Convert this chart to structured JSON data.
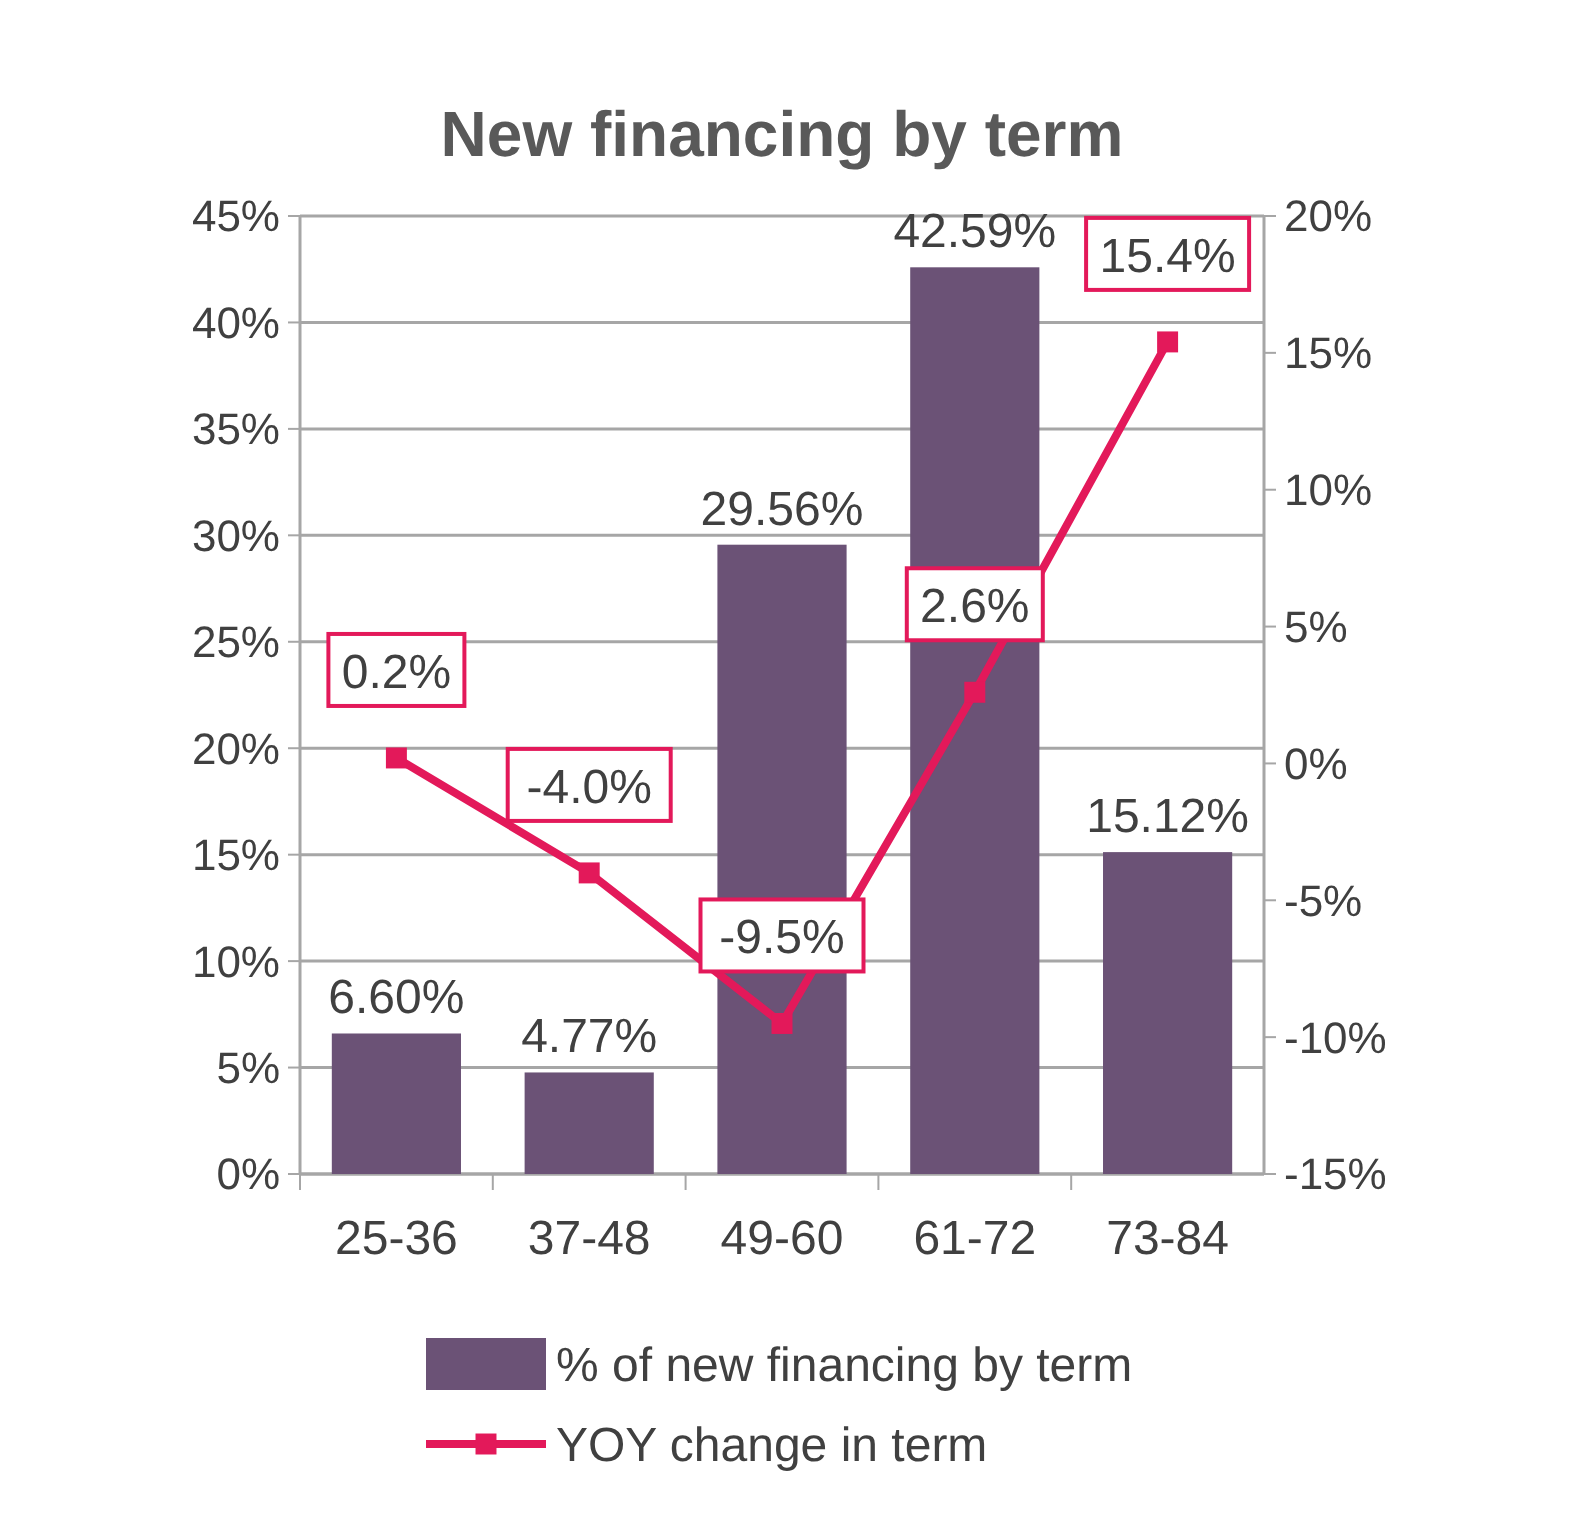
{
  "chart_data": {
    "type": "bar",
    "title": "New financing by term",
    "categories": [
      "25-36",
      "37-48",
      "49-60",
      "61-72",
      "73-84"
    ],
    "series": [
      {
        "name": "% of new financing by term",
        "color": "#6b5276",
        "values": [
          6.6,
          4.77,
          29.56,
          42.59,
          15.12
        ],
        "value_labels": [
          "6.60%",
          "4.77%",
          "29.56%",
          "42.59%",
          "15.12%"
        ]
      },
      {
        "name": "YOY change in term",
        "type": "line",
        "axis": "y2",
        "color": "#e3195a",
        "values": [
          0.2,
          -4.0,
          -9.5,
          2.6,
          15.4
        ],
        "value_labels": [
          "0.2%",
          "-4.0%",
          "-9.5%",
          "2.6%",
          "15.4%"
        ]
      }
    ],
    "ylim": [
      0,
      45
    ],
    "yticks": [
      {
        "value": 0,
        "label": "0%"
      },
      {
        "value": 5,
        "label": "5%"
      },
      {
        "value": 10,
        "label": "10%"
      },
      {
        "value": 15,
        "label": "15%"
      },
      {
        "value": 20,
        "label": "20%"
      },
      {
        "value": 25,
        "label": "25%"
      },
      {
        "value": 30,
        "label": "30%"
      },
      {
        "value": 35,
        "label": "35%"
      },
      {
        "value": 40,
        "label": "40%"
      },
      {
        "value": 45,
        "label": "45%"
      }
    ],
    "y2lim": [
      -15,
      20
    ],
    "y2ticks": [
      {
        "value": -15,
        "label": "-15%"
      },
      {
        "value": -10,
        "label": "-10%"
      },
      {
        "value": -5,
        "label": "-5%"
      },
      {
        "value": 0,
        "label": "0%"
      },
      {
        "value": 5,
        "label": "5%"
      },
      {
        "value": 10,
        "label": "10%"
      },
      {
        "value": 15,
        "label": "15%"
      },
      {
        "value": 20,
        "label": "20%"
      }
    ],
    "grid": "y",
    "legend": "bottom",
    "marker": "square"
  }
}
